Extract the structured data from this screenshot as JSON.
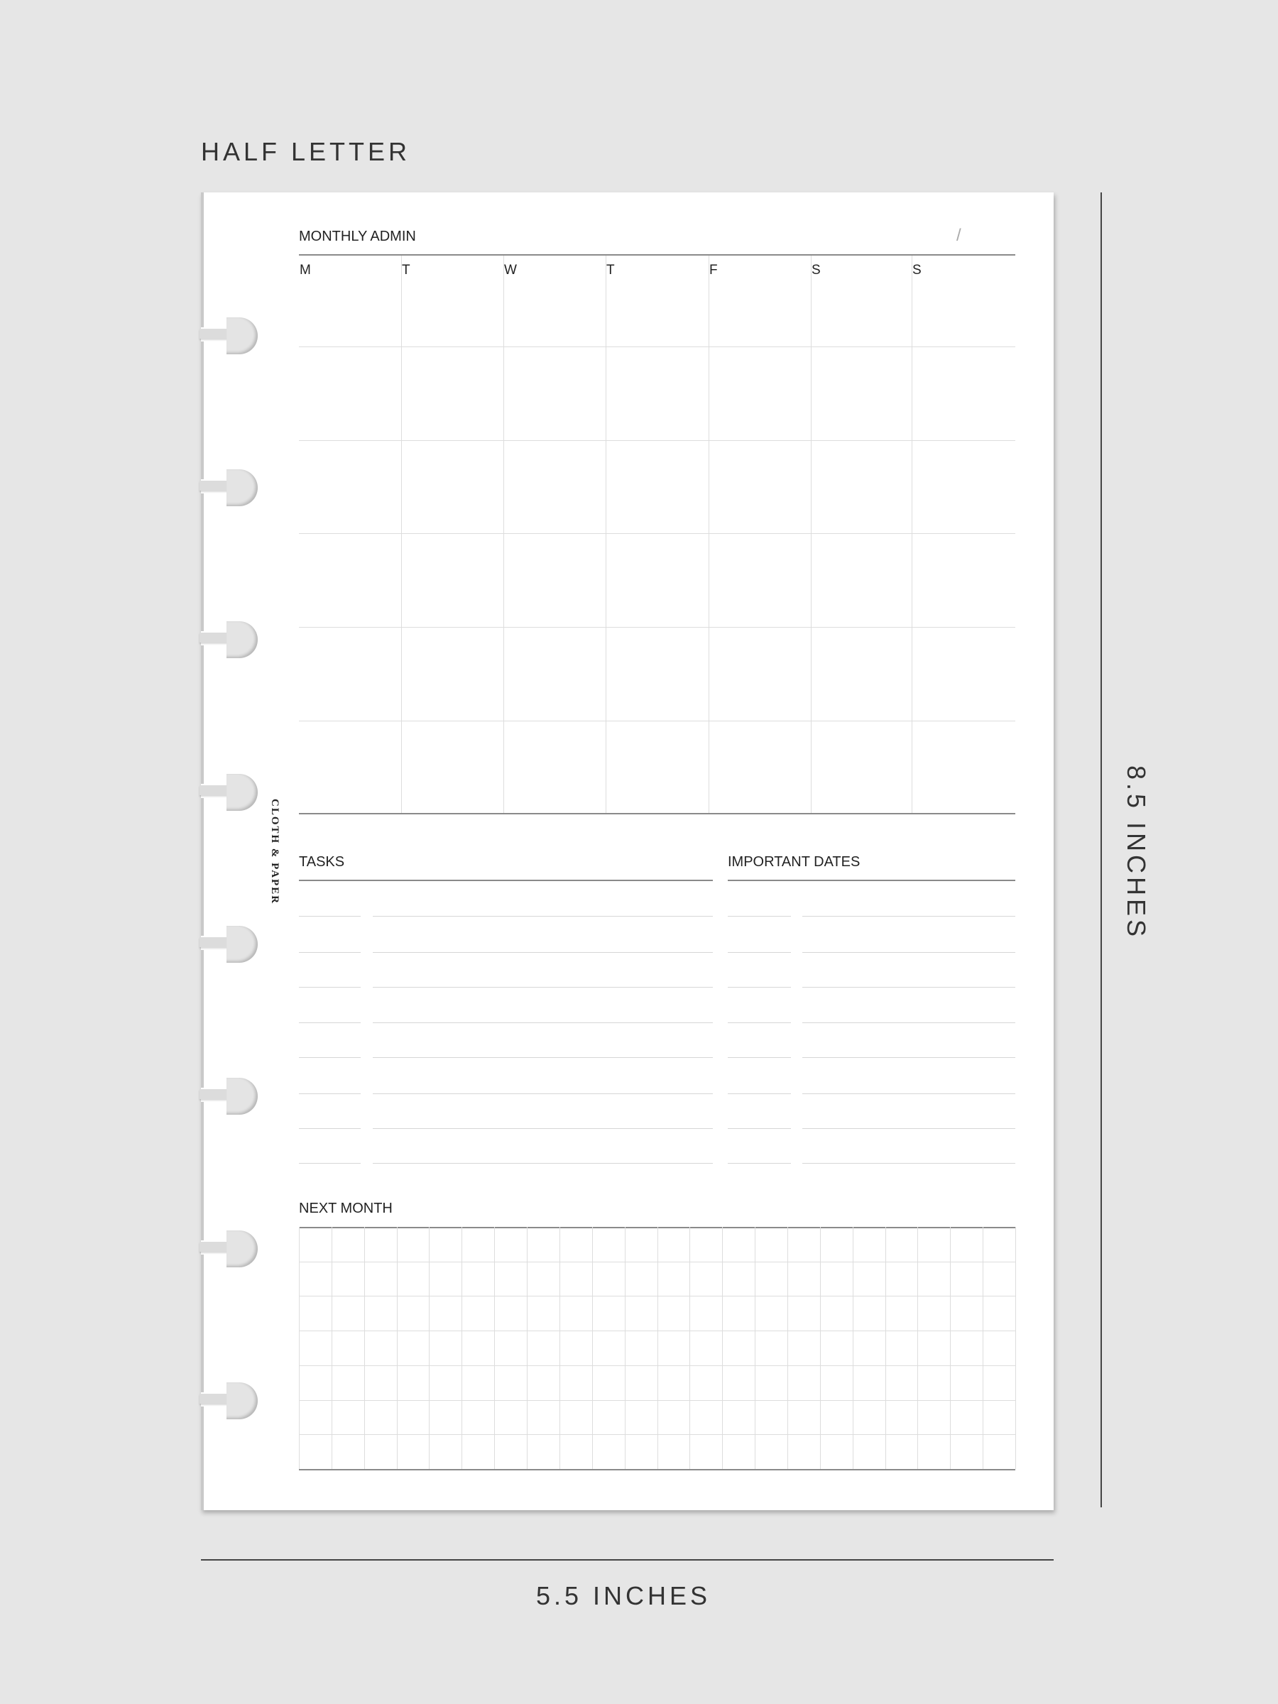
{
  "title": "HALF LETTER",
  "brand": "CLOTH & PAPER",
  "monthly": {
    "label": "MONTHLY ADMIN",
    "date_separator": "/",
    "days": [
      "M",
      "T",
      "W",
      "T",
      "F",
      "S",
      "S"
    ]
  },
  "tasks": {
    "label": "TASKS"
  },
  "important_dates": {
    "label": "IMPORTANT DATES"
  },
  "next_month": {
    "label": "NEXT MONTH"
  },
  "dimensions": {
    "height": "8.5 INCHES",
    "width": "5.5 INCHES"
  }
}
